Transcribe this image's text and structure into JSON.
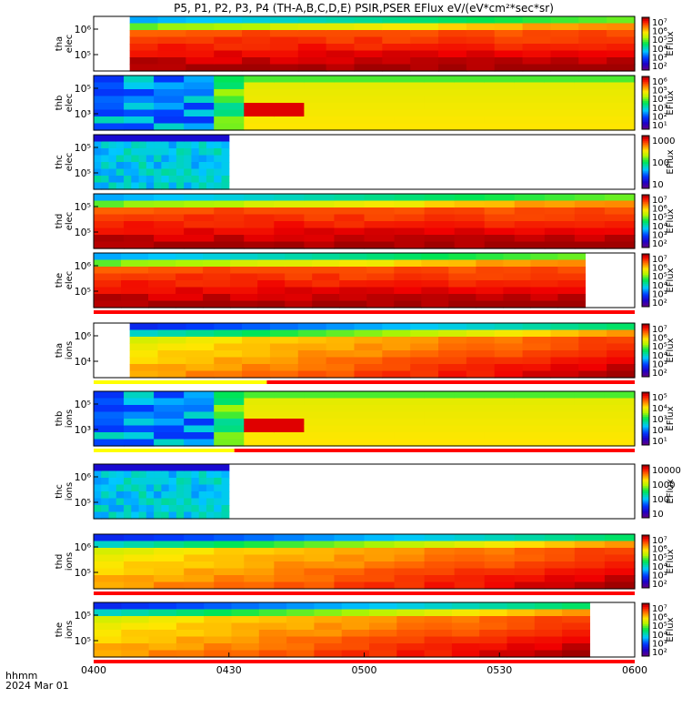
{
  "chart_data": {
    "type": "heatmap",
    "title": "P5, P1, P2, P3, P4 (TH-A,B,C,D,E) PSIR,PSER EFlux eV/(eV*cm²*sec*sr)",
    "x_axis": {
      "tick_labels": [
        "0400",
        "0430",
        "0500",
        "0530",
        "0600"
      ],
      "xlim": [
        "04:00",
        "06:00"
      ],
      "corner_label": [
        "hhmm",
        "2024 Mar 01"
      ]
    },
    "panels": [
      {
        "label": [
          "tha",
          "elec"
        ],
        "y_ticks": [
          "10⁶",
          "10⁵"
        ],
        "zlabel": "EFlux",
        "colorbar_ticks": [
          "10⁷",
          "10⁶",
          "10⁵",
          "10⁴",
          "10³",
          "10²"
        ],
        "data_start": "04:08",
        "data_end": "06:00",
        "gap_fraction": 0,
        "gap_color": null,
        "pattern": "hot"
      },
      {
        "label": [
          "thb",
          "elec"
        ],
        "y_ticks": [
          "10⁵",
          "10³"
        ],
        "zlabel": "EFlux",
        "colorbar_ticks": [
          "10⁶",
          "10⁵",
          "10⁴",
          "10³",
          "10²",
          "10¹"
        ],
        "data_start": "04:00",
        "data_end": "06:00",
        "gap_fraction": 0,
        "gap_color": null,
        "pattern": "thb"
      },
      {
        "label": [
          "thc",
          "elec"
        ],
        "y_ticks": [
          "10⁵",
          "10⁵"
        ],
        "zlabel": "EFlux",
        "colorbar_ticks": [
          "1000",
          "100",
          "10"
        ],
        "data_start": "04:00",
        "data_end": "04:30",
        "gap_fraction": 0,
        "gap_color": null,
        "pattern": "thc"
      },
      {
        "label": [
          "thd",
          "elec"
        ],
        "y_ticks": [
          "10⁵",
          "10⁵"
        ],
        "zlabel": "EFlux",
        "colorbar_ticks": [
          "10⁷",
          "10⁶",
          "10⁵",
          "10⁴",
          "10³",
          "10²"
        ],
        "data_start": "04:00",
        "data_end": "06:00",
        "gap_fraction": 0,
        "gap_color": null,
        "pattern": "hot"
      },
      {
        "label": [
          "the",
          "elec"
        ],
        "y_ticks": [
          "10⁶",
          "10⁵"
        ],
        "zlabel": "EFlux",
        "colorbar_ticks": [
          "10⁷",
          "10⁶",
          "10⁵",
          "10⁴",
          "10³",
          "10²"
        ],
        "data_start": "04:00",
        "data_end": "05:49",
        "gap_fraction": 0.5,
        "gap_color": "#ff0000",
        "pattern": "hot"
      },
      {
        "label": [
          "tha",
          "ions"
        ],
        "y_ticks": [
          "10⁶",
          "10⁴"
        ],
        "zlabel": "EFlux",
        "colorbar_ticks": [
          "10⁷",
          "10⁶",
          "10⁵",
          "10⁴",
          "10³",
          "10²"
        ],
        "data_start": "04:08",
        "data_end": "06:00",
        "gap_fraction": 0.32,
        "gap_color": "#ffff00",
        "pattern": "ion"
      },
      {
        "label": [
          "thb",
          "ions"
        ],
        "y_ticks": [
          "10⁵",
          "10³"
        ],
        "zlabel": "EFlux",
        "colorbar_ticks": [
          "10⁵",
          "10⁴",
          "10³",
          "10²",
          "10¹"
        ],
        "data_start": "04:00",
        "data_end": "06:00",
        "gap_fraction": 0.26,
        "gap_color": "#ffff00",
        "pattern": "thb"
      },
      {
        "label": [
          "thc",
          "ions"
        ],
        "y_ticks": [
          "10⁶",
          "10⁵"
        ],
        "zlabel": "EFlux",
        "colorbar_ticks": [
          "10000",
          "1000",
          "100",
          "10"
        ],
        "data_start": "04:00",
        "data_end": "04:30",
        "gap_fraction": 0,
        "gap_color": null,
        "pattern": "thc"
      },
      {
        "label": [
          "thd",
          "ions"
        ],
        "y_ticks": [
          "10⁶",
          "10⁵"
        ],
        "zlabel": "EFlux",
        "colorbar_ticks": [
          "10⁷",
          "10⁶",
          "10⁵",
          "10⁴",
          "10³",
          "10²"
        ],
        "data_start": "04:00",
        "data_end": "06:00",
        "gap_fraction": 0,
        "gap_color": "#ff0000",
        "pattern": "ion"
      },
      {
        "label": [
          "the",
          "ions"
        ],
        "y_ticks": [
          "10⁵",
          "10⁵"
        ],
        "zlabel": "EFlux",
        "colorbar_ticks": [
          "10⁷",
          "10⁶",
          "10⁵",
          "10⁴",
          "10³",
          "10²"
        ],
        "data_start": "04:00",
        "data_end": "05:50",
        "gap_fraction": 0,
        "gap_color": "#ff0000",
        "pattern": "ion"
      }
    ]
  }
}
